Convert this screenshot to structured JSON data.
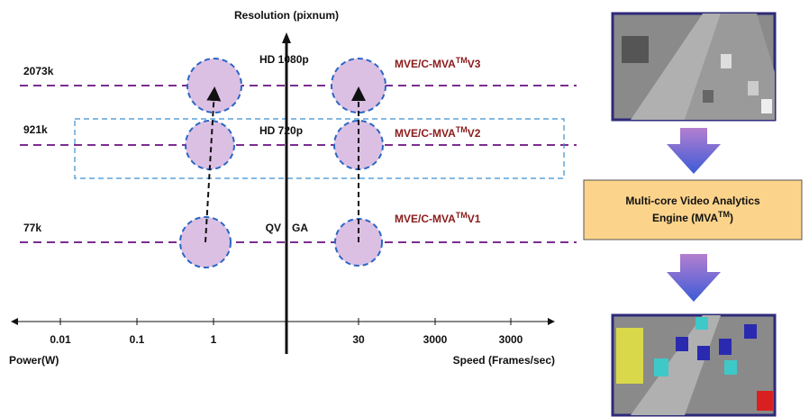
{
  "diagram": {
    "title": "Resolution (pixnum)",
    "levels": [
      {
        "label": "2073k",
        "format": "HD 1080p",
        "engine": [
          "MVE/C-MVA",
          "TM",
          "V3"
        ]
      },
      {
        "label": "921k",
        "format": "HD 720p",
        "engine": [
          "MVE/C-MVA",
          "TM",
          "V2"
        ]
      },
      {
        "label": "77k",
        "format": [
          "QV",
          "GA"
        ],
        "engine": [
          "MVE/C-MVA",
          "TM",
          "V1"
        ]
      }
    ],
    "power_ticks": [
      "0.01",
      "0.1",
      "1"
    ],
    "speed_ticks": [
      "30",
      "3000",
      "3000"
    ],
    "power_label": "Power(W)",
    "speed_label": "Speed (Frames/sec)",
    "engine_box": [
      "Multi-core Video Analytics",
      "Engine (MVA",
      "TM",
      ")"
    ]
  }
}
